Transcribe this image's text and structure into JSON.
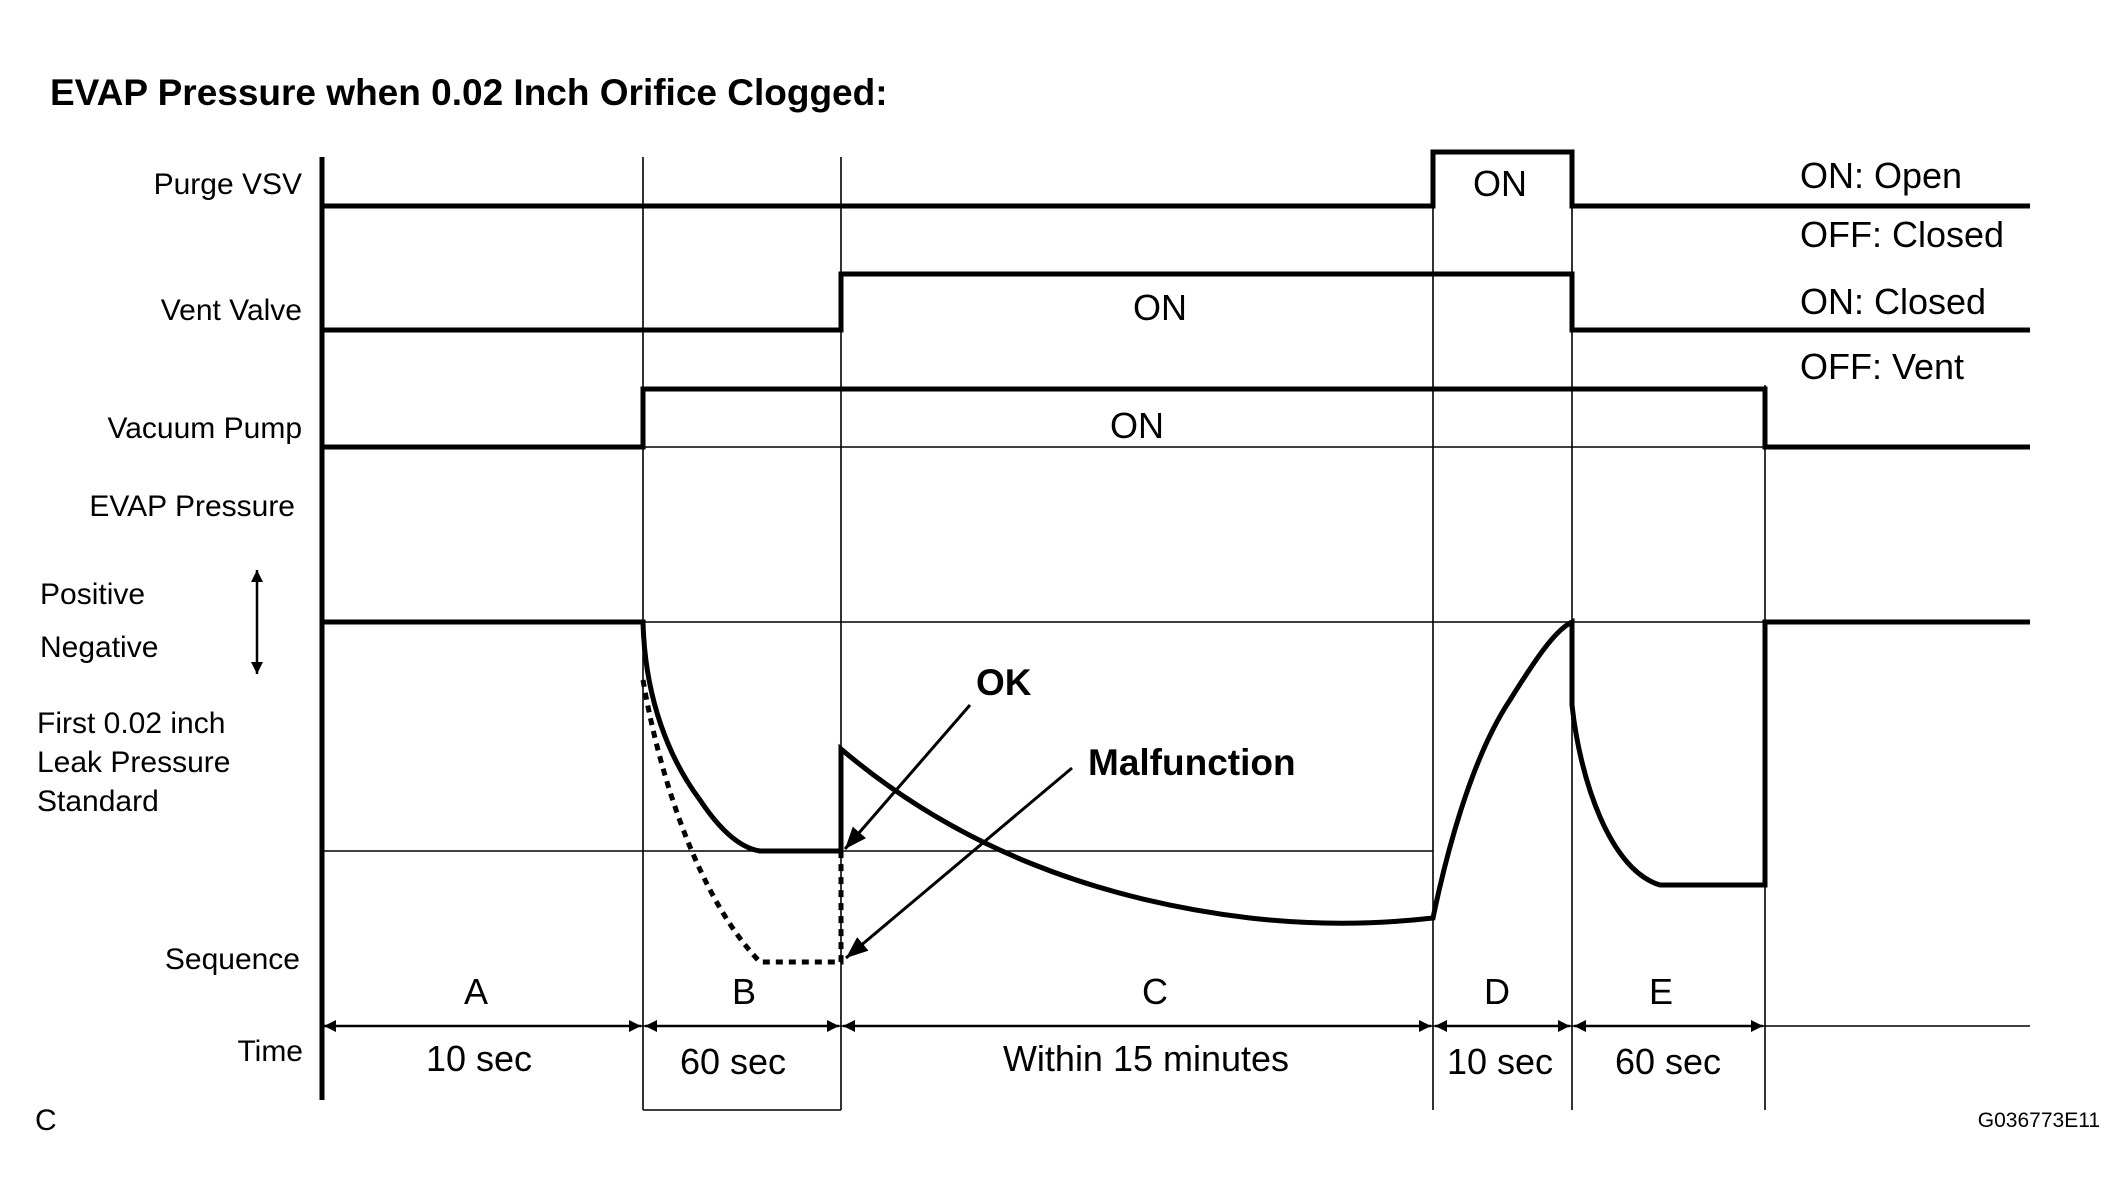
{
  "title": "EVAP Pressure when 0.02 Inch Orifice Clogged:",
  "rows": {
    "purge_vsv": "Purge VSV",
    "vent_valve": "Vent Valve",
    "vacuum_pump": "Vacuum Pump",
    "evap_pressure": "EVAP Pressure",
    "positive": "Positive",
    "negative": "Negative",
    "leak_standard": [
      "First 0.02 inch",
      "Leak Pressure",
      "Standard"
    ],
    "sequence": "Sequence",
    "time": "Time"
  },
  "states": {
    "purge_on": "ON",
    "vent_on": "ON",
    "pump_on": "ON"
  },
  "legend": {
    "purge_on": "ON: Open",
    "purge_off": "OFF: Closed",
    "vent_on": "ON: Closed",
    "vent_off": "OFF: Vent"
  },
  "callouts": {
    "ok": "OK",
    "malfunction": "Malfunction"
  },
  "sequence": [
    {
      "label": "A",
      "time": "10 sec"
    },
    {
      "label": "B",
      "time": "60 sec"
    },
    {
      "label": "C",
      "time": "Within 15 minutes"
    },
    {
      "label": "D",
      "time": "10 sec"
    },
    {
      "label": "E",
      "time": "60 sec"
    }
  ],
  "corner_letter": "C",
  "figure_id": "G036773E11"
}
